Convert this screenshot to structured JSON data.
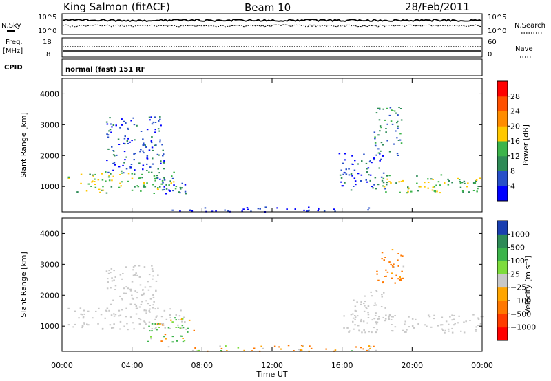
{
  "header": {
    "station": "King Salmon (fitACF)",
    "beam": "Beam 10",
    "date": "28/Feb/2011"
  },
  "noise_panel": {
    "left_label": "N.Sky",
    "right_label": "N.Search",
    "left_ticks": [
      "10^5",
      "10^0"
    ],
    "right_ticks": [
      "10^5",
      "10^0"
    ]
  },
  "freq_panel": {
    "left_label_1": "Freq.",
    "left_label_2": "[MHz]",
    "right_label": "Nave",
    "left_ticks": [
      "18",
      "8"
    ],
    "right_ticks": [
      "60",
      "0"
    ]
  },
  "cpid": {
    "label": "CPID",
    "value": "normal (fast) 151 RF"
  },
  "chart_data": [
    {
      "type": "heatmap",
      "name": "power",
      "ylabel": "Slant Range [km]",
      "ylim": [
        180,
        4500
      ],
      "yticks": [
        "1000",
        "2000",
        "3000",
        "4000"
      ],
      "xlim": [
        0,
        24
      ],
      "colorbar_label": "Power [dB]",
      "colorbar_ticks": [
        "4",
        "8",
        "12",
        "16",
        "20",
        "24",
        "28"
      ],
      "colors": [
        "#0000ff",
        "#2850c8",
        "#2e8b57",
        "#3cb44b",
        "#ffc800",
        "#ff8c00",
        "#ff5000",
        "#ff0000"
      ],
      "regions": [
        {
          "x": [
            0.3,
            6.5
          ],
          "y": [
            800,
            1500
          ],
          "level": 14
        },
        {
          "x": [
            2.5,
            5.8
          ],
          "y": [
            1400,
            3300
          ],
          "level": 6
        },
        {
          "x": [
            5.4,
            7.2
          ],
          "y": [
            700,
            1300
          ],
          "level": 5
        },
        {
          "x": [
            15.8,
            18.5
          ],
          "y": [
            900,
            2100
          ],
          "level": 6
        },
        {
          "x": [
            18.0,
            24.0
          ],
          "y": [
            800,
            1400
          ],
          "level": 15
        },
        {
          "x": [
            17.8,
            19.4
          ],
          "y": [
            2000,
            3600
          ],
          "level": 9
        },
        {
          "x": [
            6.0,
            17.5
          ],
          "y": [
            200,
            350
          ],
          "level": 3
        }
      ]
    },
    {
      "type": "heatmap",
      "name": "velocity",
      "ylabel": "Slant Range [km]",
      "ylim": [
        180,
        4500
      ],
      "yticks": [
        "1000",
        "2000",
        "3000",
        "4000"
      ],
      "xlim": [
        0,
        24
      ],
      "xticks": [
        "00:00",
        "04:00",
        "08:00",
        "12:00",
        "16:00",
        "20:00",
        "00:00"
      ],
      "xlabel": "Time UT",
      "colorbar_label": "Velocity [m s⁻¹]",
      "colorbar_ticks": [
        "1000",
        "500",
        "100",
        "25",
        "−25",
        "−100",
        "−500",
        "−1000"
      ],
      "colors": [
        "#1a3fb0",
        "#2e8b57",
        "#3cb44b",
        "#7ddc3c",
        "#c8c8c8",
        "#ffa500",
        "#ff7800",
        "#ff3c00",
        "#ff0000"
      ],
      "regions": [
        {
          "x": [
            0.3,
            7.0
          ],
          "y": [
            900,
            1600
          ],
          "level": 0
        },
        {
          "x": [
            2.5,
            5.5
          ],
          "y": [
            1500,
            3000
          ],
          "level": 0
        },
        {
          "x": [
            4.8,
            7.5
          ],
          "y": [
            500,
            1300
          ],
          "level": 40
        },
        {
          "x": [
            16.0,
            24.0
          ],
          "y": [
            800,
            1400
          ],
          "level": 0
        },
        {
          "x": [
            17.8,
            19.5
          ],
          "y": [
            2400,
            3500
          ],
          "level": -150
        },
        {
          "x": [
            16.5,
            18.5
          ],
          "y": [
            1100,
            2200
          ],
          "level": 0
        },
        {
          "x": [
            6.0,
            18.0
          ],
          "y": [
            200,
            400
          ],
          "level": -60
        }
      ]
    }
  ]
}
